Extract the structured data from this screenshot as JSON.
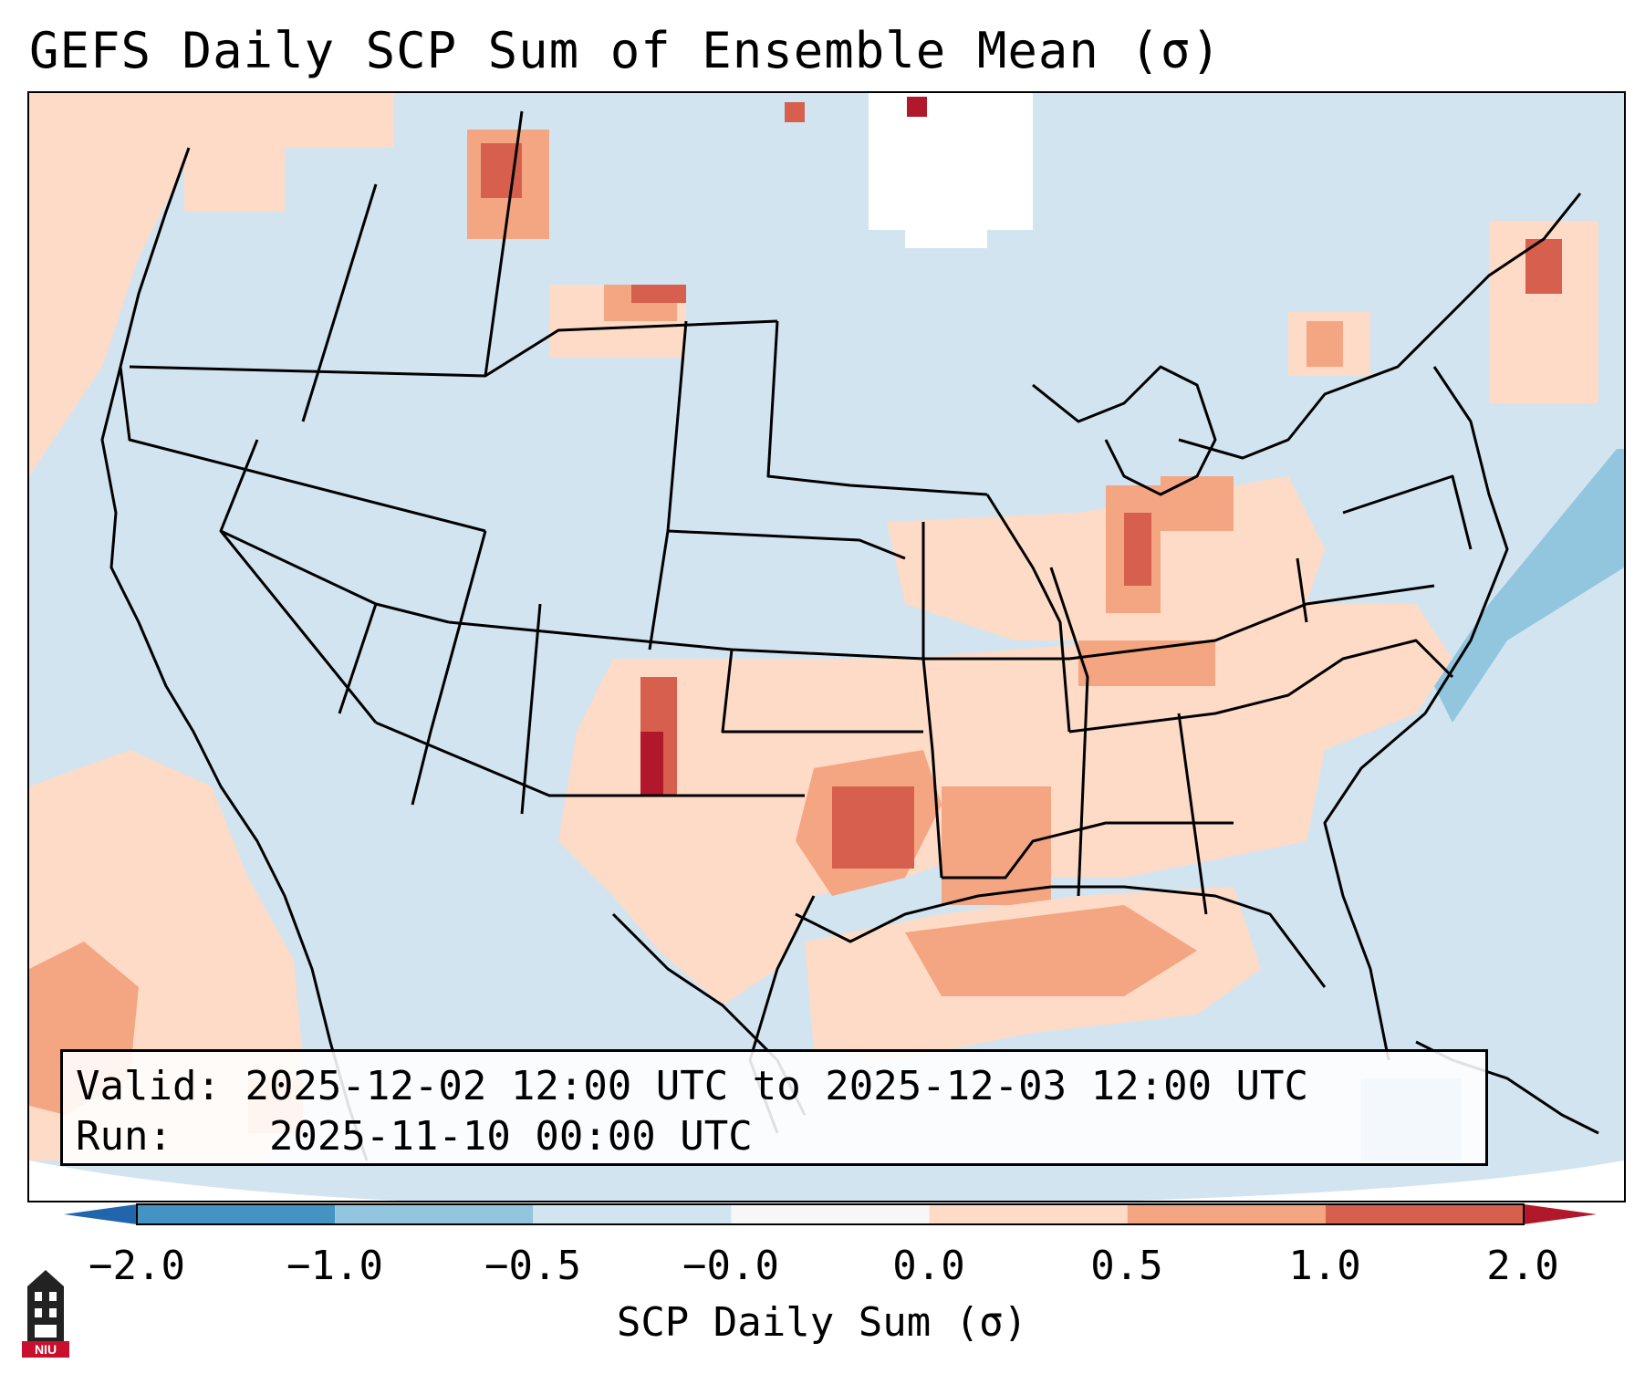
{
  "title": "GEFS Daily SCP Sum of Ensemble Mean (σ)",
  "info": {
    "valid_label": "Valid:",
    "valid_value": "2025-12-02 12:00 UTC to 2025-12-03 12:00 UTC",
    "run_label": "Run:",
    "run_value": "2025-11-10 00:00 UTC"
  },
  "colorbar": {
    "label": "SCP Daily Sum (σ)",
    "ticks": [
      "−2.0",
      "−1.0",
      "−0.5",
      "−0.0",
      "0.0",
      "0.5",
      "1.0",
      "2.0"
    ],
    "colors": [
      "#4393c3",
      "#92c5de",
      "#d1e5f0",
      "#f7f7f7",
      "#fddbc7",
      "#f4a582",
      "#d6604d"
    ],
    "under_color": "#2166ac",
    "over_color": "#b2182b"
  },
  "logo": {
    "text": "NIU",
    "icon": "university-tower-icon"
  },
  "map": {
    "region": "Contiguous United States",
    "palette": {
      "neg_light": "#d1e5f0",
      "neg_mid": "#92c5de",
      "none": "#ffffff",
      "pos_light": "#fddbc7",
      "pos_mid": "#f4a582",
      "pos_high": "#d6604d",
      "pos_max": "#b2182b"
    }
  }
}
